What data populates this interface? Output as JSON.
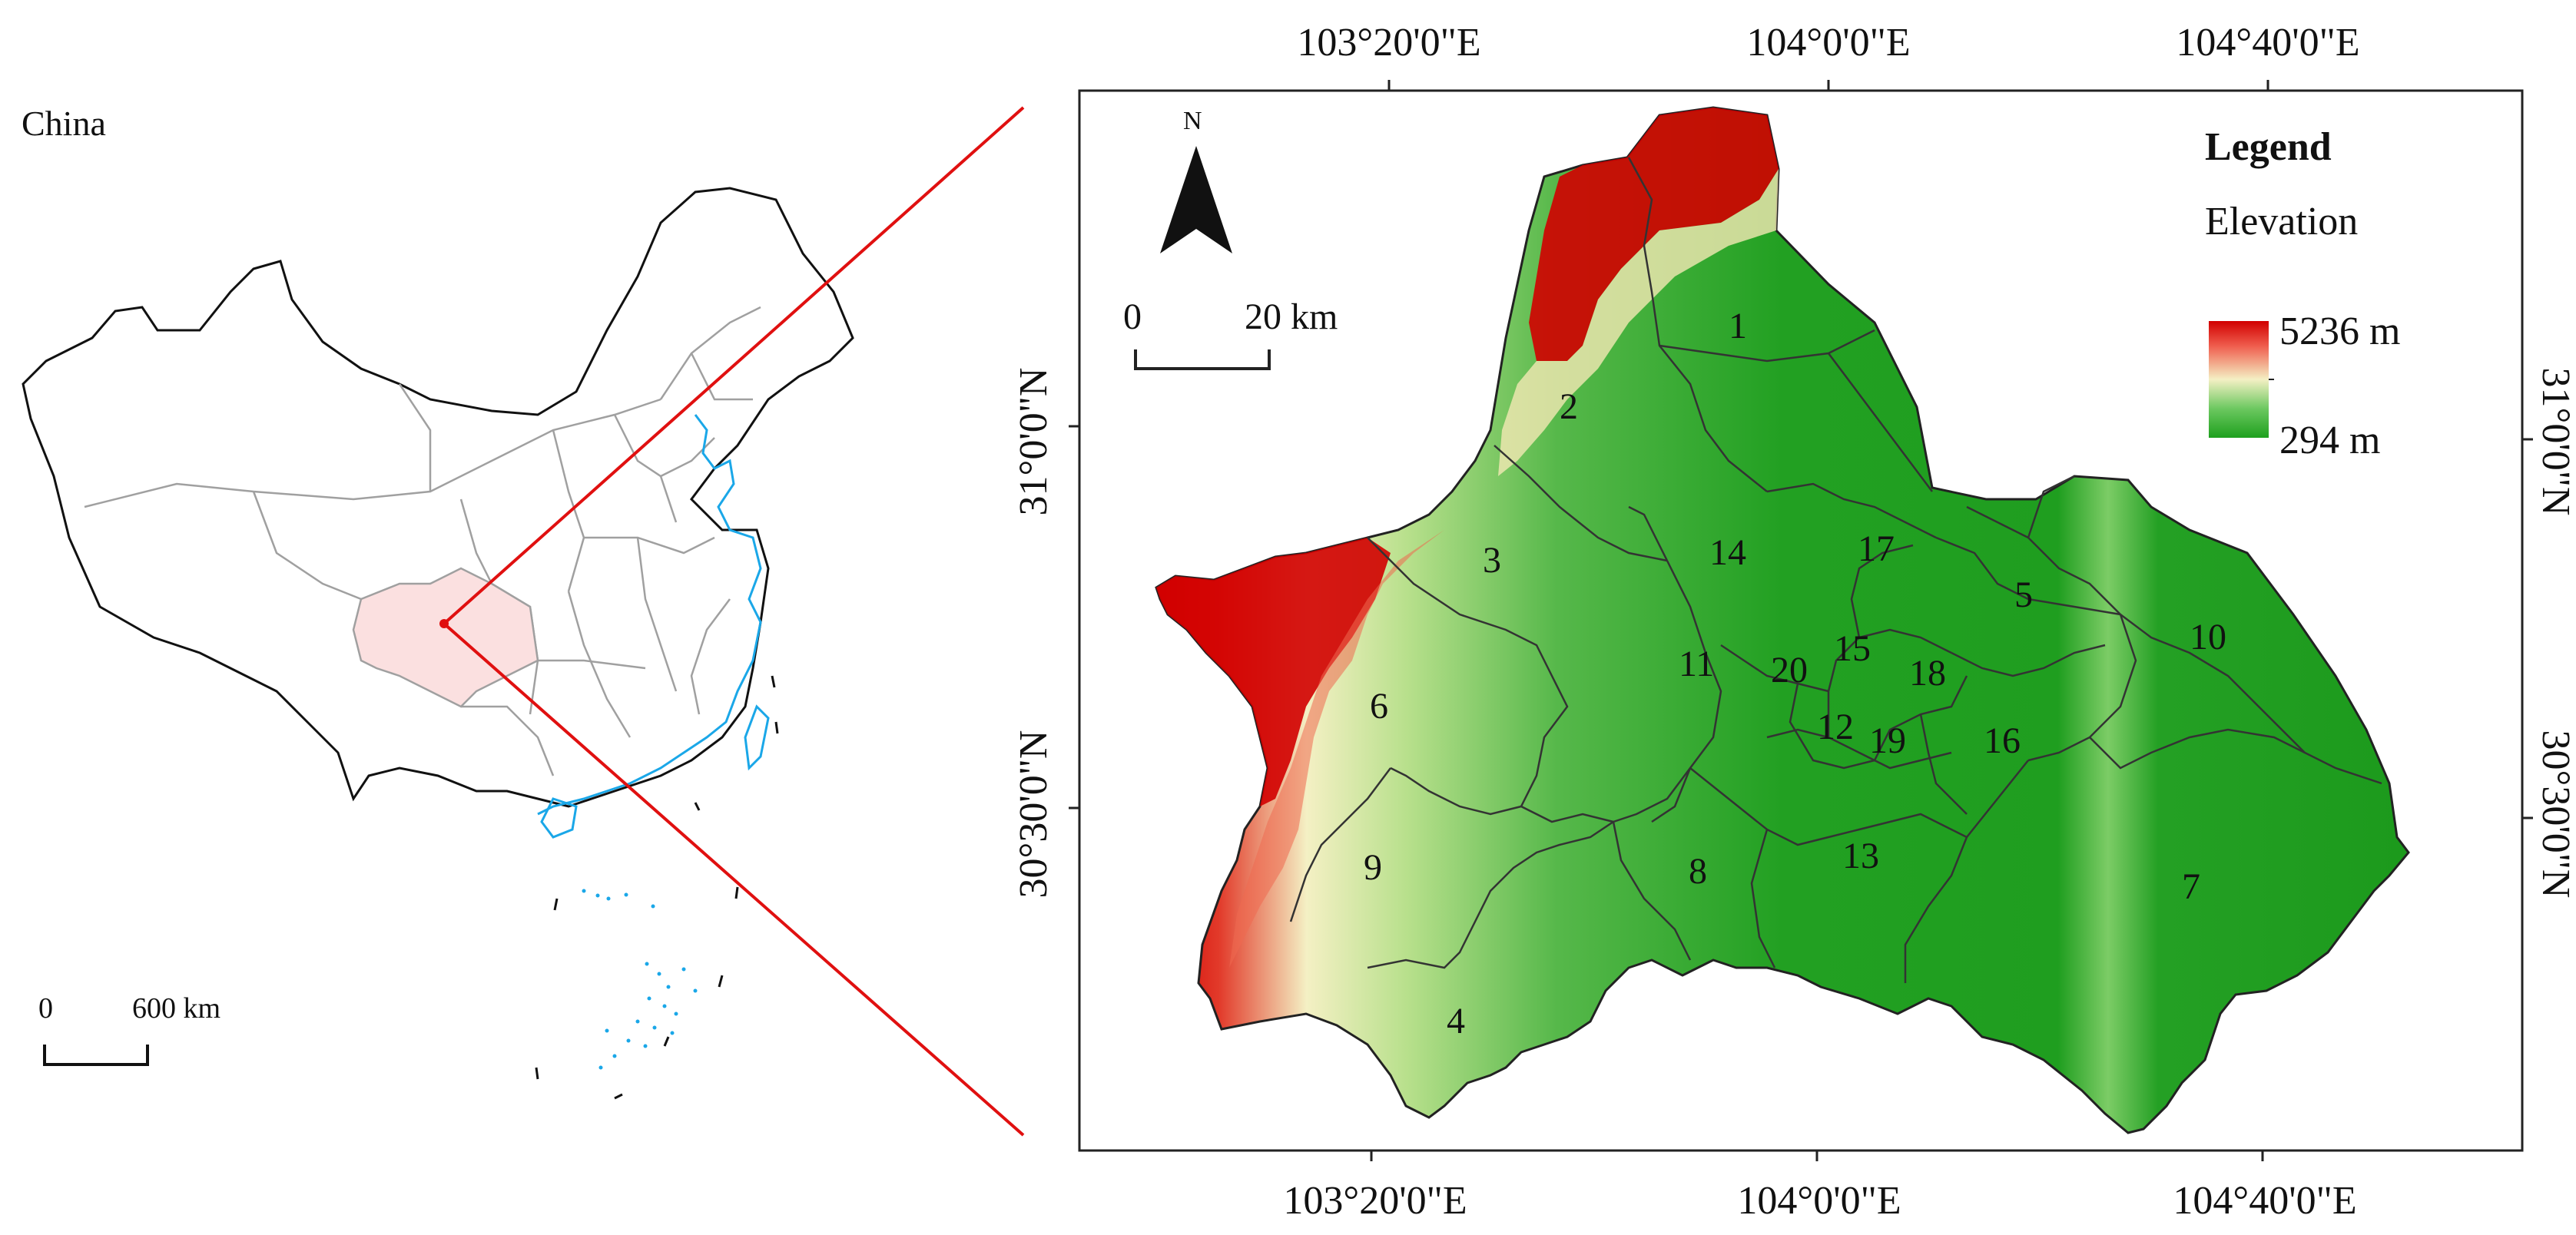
{
  "colors": {
    "elev_high": "#d10000",
    "elev_mid": "#f4f0c4",
    "elev_low": "#1ea01e",
    "china_outline": "#111111",
    "province_lines": "#a0a0a0",
    "coast_blue": "#1aa7e8",
    "sichuan_fill": "#fbe0e0",
    "leader_line": "#e01010"
  },
  "inset": {
    "title": "China",
    "scale": {
      "zero": "0",
      "distance": "600 km"
    }
  },
  "map": {
    "north_label": "N",
    "scale": {
      "zero": "0",
      "distance": "20 km"
    },
    "legend": {
      "title": "Legend",
      "subtitle": "Elevation",
      "max_label": "5236 m",
      "min_label": "294 m"
    },
    "axes": {
      "top": [
        "103°20'0\"E",
        "104°0'0\"E",
        "104°40'0\"E"
      ],
      "bottom": [
        "103°20'0\"E",
        "104°0'0\"E",
        "104°40'0\"E"
      ],
      "left": [
        "31°0'0\"N",
        "30°30'0\"N"
      ],
      "right": [
        "31°0'0\"N",
        "30°30'0\"N"
      ]
    },
    "districts": [
      "1",
      "2",
      "3",
      "4",
      "5",
      "6",
      "7",
      "8",
      "9",
      "10",
      "11",
      "12",
      "13",
      "14",
      "15",
      "16",
      "17",
      "18",
      "19",
      "20"
    ]
  }
}
